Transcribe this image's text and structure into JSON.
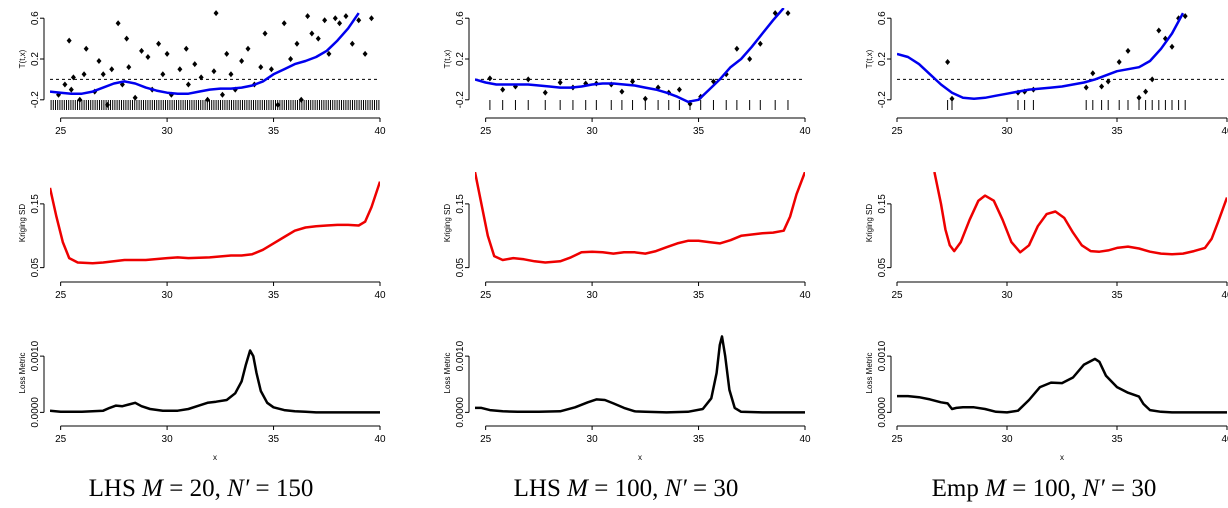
{
  "figure": {
    "captions": [
      {
        "method": "LHS",
        "M": "20",
        "N": "150"
      },
      {
        "method": "LHS",
        "M": "100",
        "N": "30"
      },
      {
        "method": "Emp",
        "M": "100",
        "N": "30"
      }
    ],
    "x_axis_title": "x"
  },
  "chart_data": [
    {
      "type": "scatter",
      "ylabel": "T(t,x)",
      "xlim": [
        24.5,
        40
      ],
      "ylim": [
        -0.3,
        0.7
      ],
      "x_ticks": [
        25,
        30,
        35,
        40
      ],
      "y_ticks": [
        -0.2,
        0.2,
        0.6
      ],
      "y_tick_labels": [
        "-0.2",
        "0.2",
        "0.6"
      ],
      "reference_line_y": 0,
      "rug": "dense design points from 24.5 to 40",
      "series": [
        {
          "kind": "points",
          "x": [
            24.9,
            25.2,
            25.4,
            25.5,
            25.6,
            25.9,
            26.1,
            26.2,
            26.6,
            26.8,
            27.0,
            27.2,
            27.4,
            27.7,
            27.9,
            28.1,
            28.2,
            28.5,
            28.8,
            29.1,
            29.3,
            29.6,
            29.8,
            30.0,
            30.2,
            30.6,
            30.9,
            31.0,
            31.3,
            31.6,
            31.9,
            32.2,
            32.3,
            32.6,
            32.8,
            33.0,
            33.2,
            33.5,
            33.8,
            34.1,
            34.4,
            34.6,
            34.9,
            35.2,
            35.5,
            35.8,
            36.1,
            36.3,
            36.6,
            36.8,
            37.1,
            37.4,
            37.6,
            37.9,
            38.1,
            38.4,
            38.7,
            39.0,
            39.3,
            39.6
          ],
          "y": [
            -0.15,
            -0.05,
            0.38,
            -0.1,
            0.02,
            -0.2,
            0.05,
            0.3,
            -0.12,
            0.18,
            0.05,
            -0.25,
            0.1,
            0.55,
            -0.05,
            0.4,
            0.12,
            -0.18,
            0.28,
            0.22,
            -0.1,
            0.35,
            0.05,
            0.25,
            -0.15,
            0.1,
            0.3,
            -0.05,
            0.15,
            0.02,
            -0.2,
            0.08,
            0.65,
            -0.15,
            0.25,
            0.05,
            -0.1,
            0.18,
            0.3,
            -0.05,
            0.12,
            0.45,
            0.1,
            -0.25,
            0.55,
            0.2,
            0.35,
            -0.2,
            0.62,
            0.45,
            0.4,
            0.58,
            0.25,
            0.6,
            0.55,
            0.62,
            0.35,
            0.58,
            0.25,
            0.6
          ]
        },
        {
          "kind": "curve",
          "x": [
            24.5,
            25,
            25.5,
            26,
            26.5,
            27,
            27.5,
            28,
            28.5,
            29,
            29.5,
            30,
            30.5,
            31,
            31.5,
            32,
            32.5,
            33,
            33.5,
            34,
            34.5,
            35,
            35.5,
            36,
            36.5,
            37,
            37.5,
            38,
            38.5,
            39
          ],
          "y": [
            -0.12,
            -0.13,
            -0.14,
            -0.14,
            -0.12,
            -0.08,
            -0.04,
            -0.02,
            -0.04,
            -0.08,
            -0.11,
            -0.13,
            -0.14,
            -0.14,
            -0.12,
            -0.1,
            -0.09,
            -0.09,
            -0.08,
            -0.06,
            -0.02,
            0.05,
            0.1,
            0.15,
            0.18,
            0.22,
            0.28,
            0.38,
            0.5,
            0.65
          ]
        }
      ]
    },
    {
      "type": "scatter",
      "ylabel": "T(t,x)",
      "xlim": [
        24.5,
        40
      ],
      "ylim": [
        -0.3,
        0.7
      ],
      "x_ticks": [
        25,
        30,
        35,
        40
      ],
      "y_ticks": [
        -0.2,
        0.2,
        0.6
      ],
      "y_tick_labels": [
        "-0.2",
        "0.2",
        "0.6"
      ],
      "reference_line_y": 0,
      "series": [
        {
          "kind": "points",
          "x": [
            25.2,
            25.8,
            26.4,
            27.0,
            27.8,
            28.5,
            29.1,
            29.7,
            30.2,
            30.9,
            31.4,
            31.9,
            32.5,
            33.1,
            33.6,
            34.1,
            34.6,
            35.1,
            35.7,
            36.3,
            36.8,
            37.4,
            37.9,
            38.6,
            39.2
          ],
          "y": [
            0.01,
            -0.1,
            -0.07,
            0.0,
            -0.13,
            -0.03,
            -0.08,
            -0.04,
            -0.04,
            -0.05,
            -0.12,
            -0.02,
            -0.19,
            -0.08,
            -0.13,
            -0.1,
            -0.24,
            -0.17,
            -0.02,
            0.05,
            0.3,
            0.2,
            0.35,
            0.65,
            0.65
          ]
        },
        {
          "kind": "curve",
          "x": [
            24.5,
            25,
            25.5,
            26,
            26.5,
            27,
            27.5,
            28,
            28.5,
            29,
            29.5,
            30,
            30.5,
            31,
            31.5,
            32,
            32.5,
            33,
            33.5,
            34,
            34.5,
            35,
            35.5,
            36,
            36.5,
            37,
            37.5,
            38,
            38.5,
            39
          ],
          "y": [
            0.0,
            -0.03,
            -0.05,
            -0.05,
            -0.05,
            -0.05,
            -0.06,
            -0.07,
            -0.08,
            -0.08,
            -0.07,
            -0.05,
            -0.04,
            -0.04,
            -0.05,
            -0.06,
            -0.08,
            -0.1,
            -0.13,
            -0.17,
            -0.22,
            -0.2,
            -0.1,
            0.0,
            0.12,
            0.2,
            0.32,
            0.45,
            0.58,
            0.7
          ]
        }
      ]
    },
    {
      "type": "scatter",
      "ylabel": "T(t,x)",
      "xlim": [
        25,
        40
      ],
      "ylim": [
        -0.3,
        0.7
      ],
      "x_ticks": [
        25,
        30,
        35,
        40
      ],
      "y_ticks": [
        -0.2,
        0.2,
        0.6
      ],
      "y_tick_labels": [
        "-0.2",
        "0.2",
        "0.6"
      ],
      "reference_line_y": 0,
      "series": [
        {
          "kind": "points",
          "x": [
            27.3,
            27.5,
            30.5,
            30.8,
            31.2,
            33.6,
            33.9,
            34.3,
            34.6,
            35.1,
            35.5,
            36.0,
            36.3,
            36.6,
            36.9,
            37.2,
            37.5,
            37.8,
            38.1
          ],
          "y": [
            0.17,
            -0.19,
            -0.13,
            -0.12,
            -0.1,
            -0.08,
            0.06,
            -0.07,
            -0.02,
            0.17,
            0.28,
            -0.18,
            -0.12,
            0.0,
            0.48,
            0.4,
            0.32,
            0.6,
            0.62
          ]
        },
        {
          "kind": "curve",
          "x": [
            25,
            25.5,
            26,
            26.5,
            27,
            27.5,
            28,
            28.5,
            29,
            29.5,
            30,
            30.5,
            31,
            31.5,
            32,
            32.5,
            33,
            33.5,
            34,
            34.5,
            35,
            35.5,
            36,
            36.5,
            37,
            37.5,
            38
          ],
          "y": [
            0.25,
            0.22,
            0.15,
            0.05,
            -0.05,
            -0.13,
            -0.18,
            -0.19,
            -0.18,
            -0.16,
            -0.14,
            -0.12,
            -0.1,
            -0.09,
            -0.08,
            -0.07,
            -0.05,
            -0.03,
            0.0,
            0.04,
            0.08,
            0.1,
            0.12,
            0.18,
            0.3,
            0.45,
            0.65
          ]
        }
      ]
    },
    {
      "type": "line",
      "ylabel": "Kriging SD",
      "xlim": [
        24.5,
        40
      ],
      "ylim": [
        0.04,
        0.2
      ],
      "x_ticks": [
        25,
        30,
        35,
        40
      ],
      "y_ticks": [
        0.05,
        0.15
      ],
      "y_tick_labels": [
        "0.05",
        "0.15"
      ],
      "series": [
        {
          "x": [
            24.5,
            24.8,
            25.1,
            25.4,
            25.8,
            26.5,
            27,
            28,
            29,
            30,
            30.5,
            31,
            32,
            33,
            33.5,
            34,
            34.5,
            35,
            35.5,
            36,
            36.5,
            37,
            37.5,
            38,
            38.5,
            39,
            39.3,
            39.6,
            40
          ],
          "y": [
            0.175,
            0.13,
            0.09,
            0.065,
            0.058,
            0.057,
            0.058,
            0.062,
            0.062,
            0.065,
            0.066,
            0.065,
            0.066,
            0.069,
            0.069,
            0.071,
            0.078,
            0.088,
            0.098,
            0.108,
            0.113,
            0.115,
            0.116,
            0.117,
            0.117,
            0.116,
            0.122,
            0.145,
            0.185
          ]
        }
      ]
    },
    {
      "type": "line",
      "ylabel": "Kriging SD",
      "xlim": [
        24.5,
        40
      ],
      "ylim": [
        0.04,
        0.2
      ],
      "x_ticks": [
        25,
        30,
        35,
        40
      ],
      "y_ticks": [
        0.05,
        0.15
      ],
      "y_tick_labels": [
        "0.05",
        "0.15"
      ],
      "series": [
        {
          "x": [
            24.5,
            24.8,
            25.1,
            25.4,
            25.8,
            26.3,
            26.8,
            27.3,
            27.8,
            28.5,
            29,
            29.5,
            30,
            30.5,
            31,
            31.5,
            32,
            32.5,
            33,
            33.5,
            34,
            34.5,
            35,
            35.5,
            36,
            36.5,
            37,
            37.5,
            38,
            38.5,
            39,
            39.3,
            39.6,
            40
          ],
          "y": [
            0.2,
            0.15,
            0.1,
            0.068,
            0.062,
            0.065,
            0.063,
            0.06,
            0.058,
            0.06,
            0.066,
            0.074,
            0.075,
            0.074,
            0.072,
            0.074,
            0.074,
            0.072,
            0.076,
            0.082,
            0.088,
            0.092,
            0.092,
            0.09,
            0.088,
            0.093,
            0.1,
            0.102,
            0.104,
            0.105,
            0.108,
            0.13,
            0.165,
            0.2
          ]
        }
      ]
    },
    {
      "type": "line",
      "ylabel": "Kriging SD",
      "xlim": [
        25,
        40
      ],
      "ylim": [
        0.04,
        0.2
      ],
      "x_ticks": [
        25,
        30,
        35,
        40
      ],
      "y_ticks": [
        0.05,
        0.15
      ],
      "y_tick_labels": [
        "0.05",
        "0.15"
      ],
      "series": [
        {
          "x": [
            26.7,
            27,
            27.2,
            27.4,
            27.6,
            27.9,
            28.3,
            28.7,
            29,
            29.4,
            29.8,
            30.2,
            30.6,
            31,
            31.4,
            31.8,
            32.2,
            32.6,
            33,
            33.4,
            33.8,
            34.2,
            34.6,
            35,
            35.5,
            36,
            36.5,
            37,
            37.5,
            38,
            38.5,
            39,
            39.3,
            39.6,
            40
          ],
          "y": [
            0.2,
            0.15,
            0.11,
            0.085,
            0.076,
            0.09,
            0.125,
            0.155,
            0.163,
            0.155,
            0.125,
            0.09,
            0.074,
            0.085,
            0.115,
            0.134,
            0.138,
            0.128,
            0.105,
            0.085,
            0.076,
            0.075,
            0.077,
            0.081,
            0.083,
            0.08,
            0.075,
            0.072,
            0.071,
            0.072,
            0.076,
            0.081,
            0.095,
            0.122,
            0.16
          ]
        }
      ]
    },
    {
      "type": "line",
      "ylabel": "Loss Metric",
      "xlim": [
        24.5,
        40
      ],
      "ylim": [
        -0.0001,
        0.0015
      ],
      "x_ticks": [
        25,
        30,
        35,
        40
      ],
      "y_ticks": [
        0.0,
        0.001
      ],
      "y_tick_labels": [
        "0.0000",
        "0.0010"
      ],
      "series": [
        {
          "x": [
            24.5,
            25,
            26,
            27,
            27.3,
            27.6,
            27.9,
            28.2,
            28.5,
            28.8,
            29.2,
            29.8,
            30.5,
            31,
            31.5,
            31.9,
            32.3,
            32.8,
            33.2,
            33.5,
            33.7,
            33.9,
            34.05,
            34.2,
            34.4,
            34.7,
            35,
            35.5,
            36,
            36.5,
            37,
            38,
            39,
            40
          ],
          "y": [
            3e-05,
            1e-05,
            1e-05,
            3e-05,
            8e-05,
            0.00012,
            0.00011,
            0.00014,
            0.00017,
            0.00011,
            6e-05,
            3e-05,
            3e-05,
            6e-05,
            0.00012,
            0.00017,
            0.00019,
            0.00022,
            0.00034,
            0.00055,
            0.00085,
            0.0011,
            0.001,
            0.0007,
            0.00038,
            0.00017,
            9e-05,
            4e-05,
            2e-05,
            1e-05,
            0.0,
            0.0,
            0.0,
            0.0
          ]
        }
      ]
    },
    {
      "type": "line",
      "ylabel": "Loss Metric",
      "xlim": [
        24.5,
        40
      ],
      "ylim": [
        -0.0001,
        0.0015
      ],
      "x_ticks": [
        25,
        30,
        35,
        40
      ],
      "y_ticks": [
        0.0,
        0.001
      ],
      "y_tick_labels": [
        "0.0000",
        "0.0010"
      ],
      "series": [
        {
          "x": [
            24.5,
            24.8,
            25.2,
            25.8,
            26.5,
            27.5,
            28.5,
            29.2,
            29.8,
            30.2,
            30.6,
            31,
            31.5,
            32,
            32.5,
            33.5,
            34.5,
            35.2,
            35.6,
            35.85,
            36.0,
            36.1,
            36.25,
            36.45,
            36.7,
            37,
            38,
            39,
            40
          ],
          "y": [
            8e-05,
            8e-05,
            4e-05,
            2e-05,
            1e-05,
            1e-05,
            2e-05,
            9e-05,
            0.00018,
            0.00023,
            0.00022,
            0.00016,
            8e-05,
            2e-05,
            1e-05,
            0.0,
            1e-05,
            6e-05,
            0.00025,
            0.0007,
            0.0012,
            0.00135,
            0.001,
            0.0004,
            8e-05,
            1e-05,
            0.0,
            0.0,
            0.0
          ]
        }
      ]
    },
    {
      "type": "line",
      "ylabel": "Loss Metric",
      "xlim": [
        25,
        40
      ],
      "ylim": [
        -0.0001,
        0.0015
      ],
      "x_ticks": [
        25,
        30,
        35,
        40
      ],
      "y_ticks": [
        0.0,
        0.001
      ],
      "y_tick_labels": [
        "0.0000",
        "0.0010"
      ],
      "series": [
        {
          "x": [
            25,
            25.5,
            26,
            26.5,
            27,
            27.3,
            27.5,
            27.7,
            28,
            28.5,
            29,
            29.5,
            30,
            30.5,
            31,
            31.5,
            32,
            32.5,
            33,
            33.5,
            34,
            34.2,
            34.5,
            35,
            35.5,
            36,
            36.2,
            36.5,
            37,
            37.5,
            38,
            39,
            40
          ],
          "y": [
            0.00029,
            0.00029,
            0.00027,
            0.00023,
            0.00018,
            0.00016,
            6e-05,
            8e-05,
            9e-05,
            9e-05,
            6e-05,
            1e-05,
            0.0,
            3e-05,
            0.00022,
            0.00045,
            0.00053,
            0.00052,
            0.00062,
            0.00085,
            0.00095,
            0.0009,
            0.00065,
            0.00045,
            0.00035,
            0.00028,
            0.00015,
            4e-05,
            1e-05,
            0.0,
            0.0,
            0.0,
            0.0
          ]
        }
      ]
    }
  ]
}
